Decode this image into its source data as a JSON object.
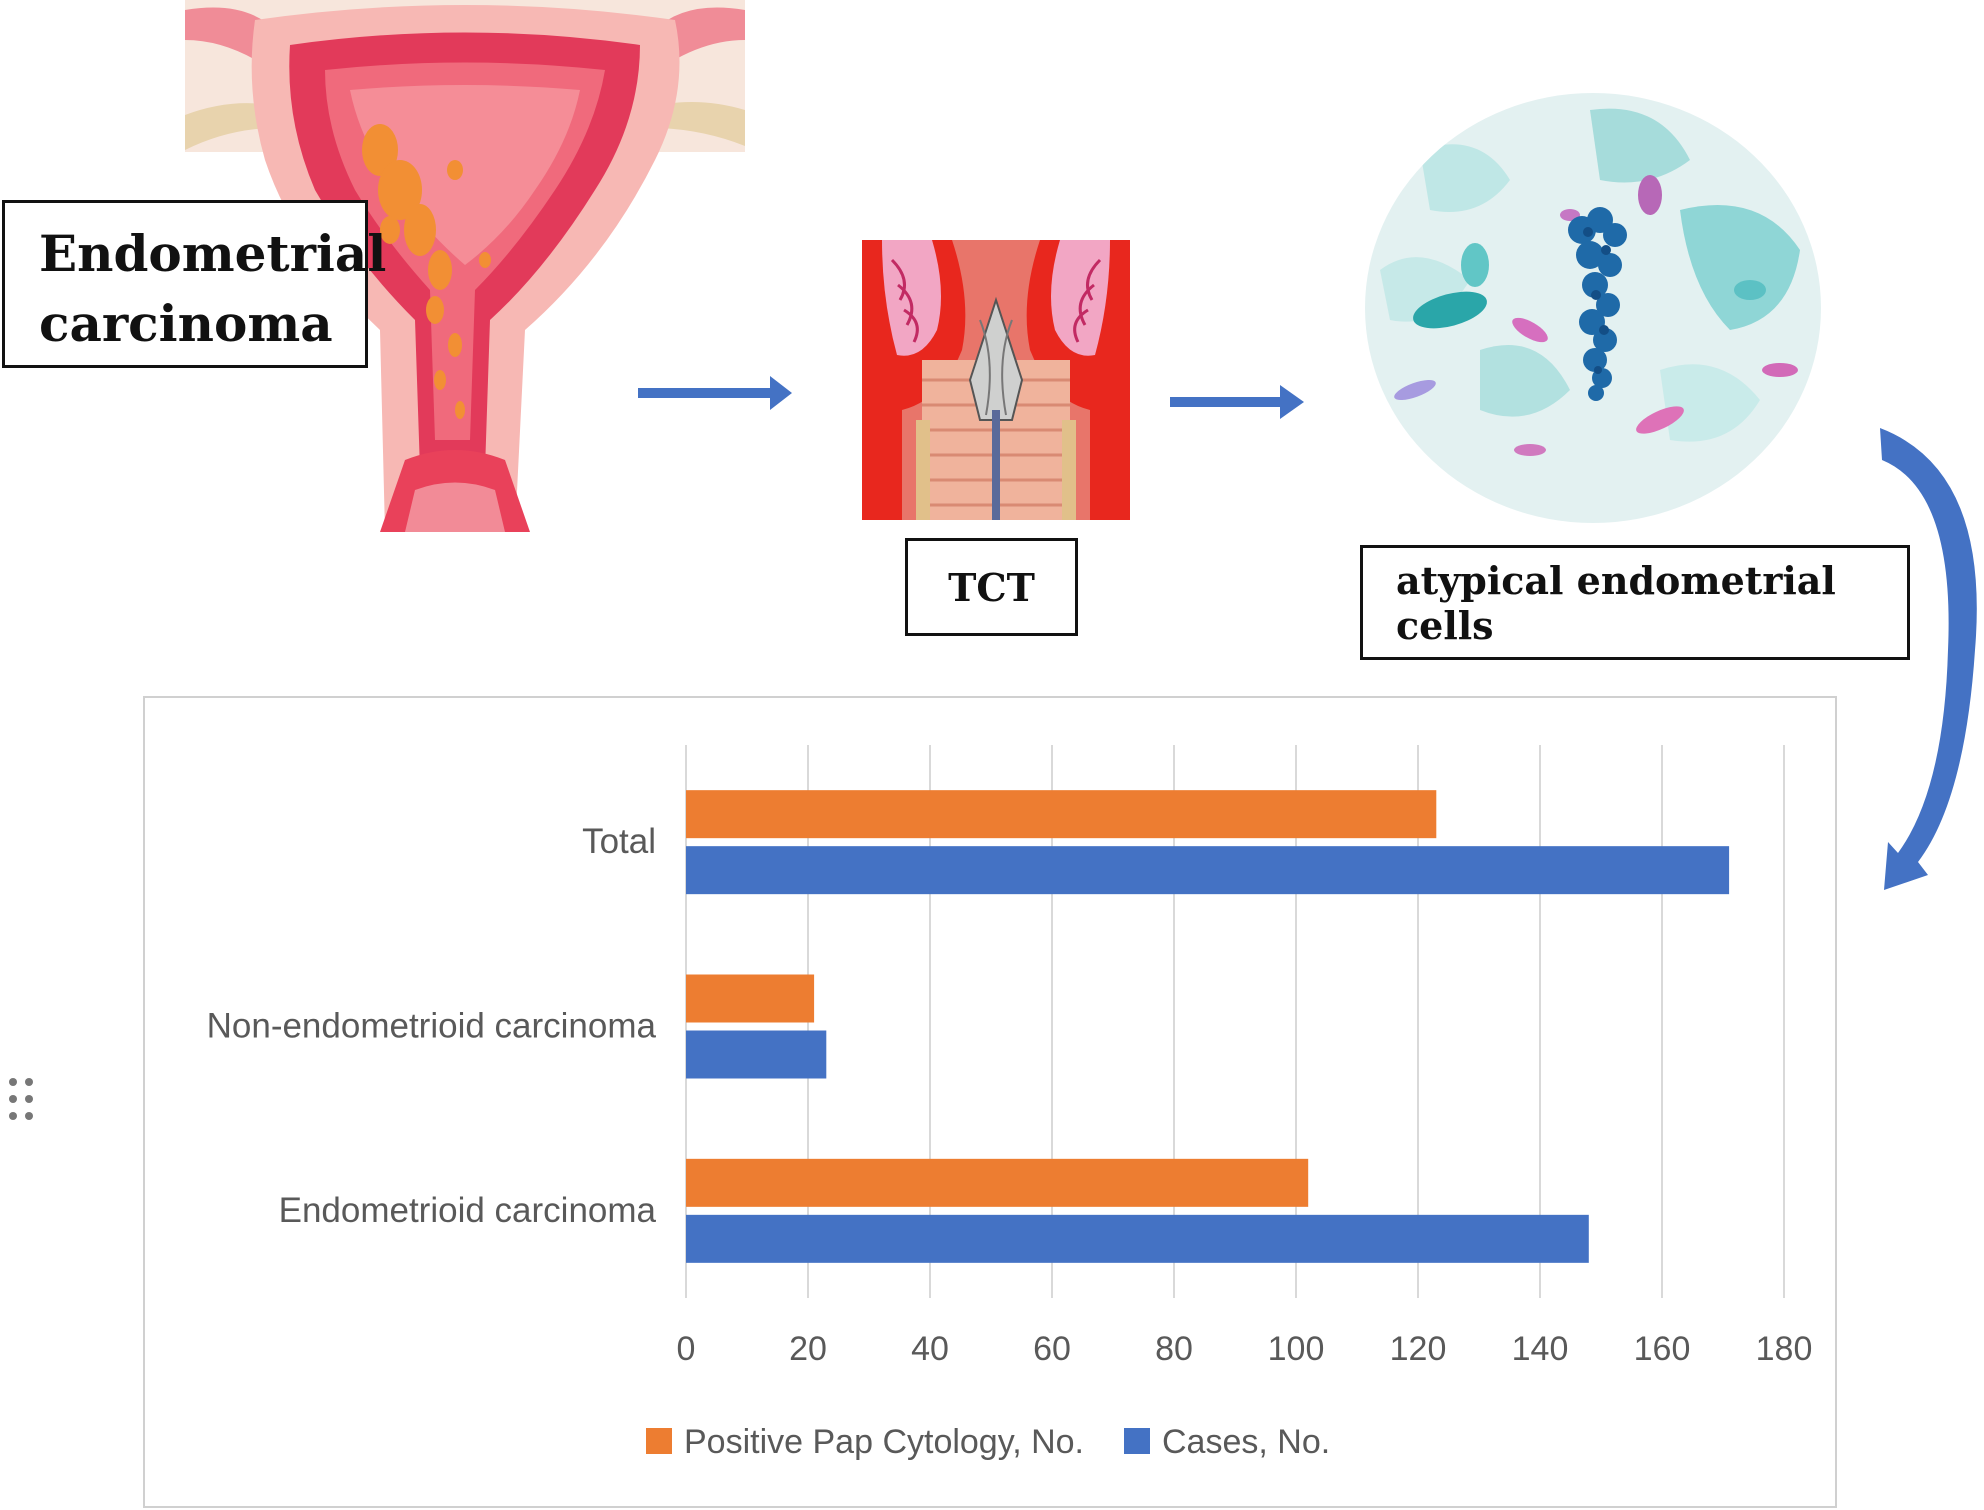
{
  "labels": {
    "endometrial": "Endometrial carcinoma",
    "tct": "TCT",
    "atypical": "atypical endometrial cells"
  },
  "icons": [
    "uterus-illustration",
    "brush-sampling-illustration",
    "cytology-micrograph",
    "drag-handle-icon"
  ],
  "colors": {
    "arrow": "#4472c4",
    "positive": "#ed7d31",
    "cases": "#4472c4"
  },
  "chart_data": {
    "type": "bar",
    "orientation": "horizontal",
    "categories": [
      "Endometrioid carcinoma",
      "Non-endometrioid carcinoma",
      "Total"
    ],
    "series": [
      {
        "name": "Positive Pap Cytology, No.",
        "values": [
          102,
          21,
          123
        ]
      },
      {
        "name": "Cases, No.",
        "values": [
          148,
          23,
          171
        ]
      }
    ],
    "xlim": [
      0,
      180
    ],
    "xticks": [
      0,
      20,
      40,
      60,
      80,
      100,
      120,
      140,
      160,
      180
    ],
    "grid": true,
    "legend": "bottom"
  }
}
